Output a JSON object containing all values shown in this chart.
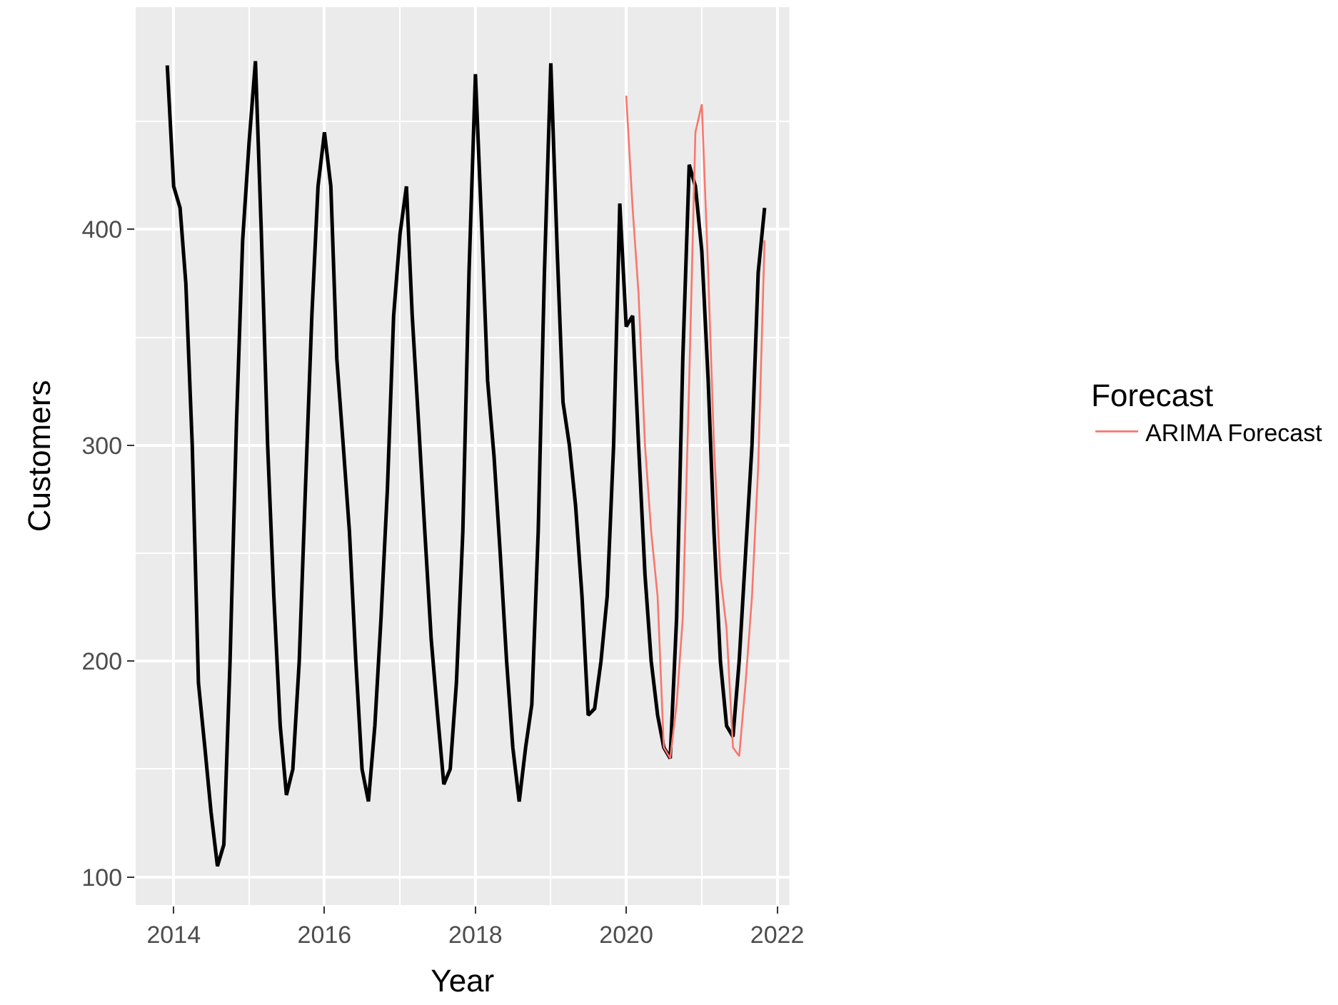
{
  "chart_data": {
    "type": "line",
    "xlabel": "Year",
    "ylabel": "Customers",
    "legend_title": "Forecast",
    "x": [
      "2013-12",
      "2014-01",
      "2014-02",
      "2014-03",
      "2014-04",
      "2014-05",
      "2014-06",
      "2014-07",
      "2014-08",
      "2014-09",
      "2014-10",
      "2014-11",
      "2014-12",
      "2015-01",
      "2015-02",
      "2015-03",
      "2015-04",
      "2015-05",
      "2015-06",
      "2015-07",
      "2015-08",
      "2015-09",
      "2015-10",
      "2015-11",
      "2015-12",
      "2016-01",
      "2016-02",
      "2016-03",
      "2016-04",
      "2016-05",
      "2016-06",
      "2016-07",
      "2016-08",
      "2016-09",
      "2016-10",
      "2016-11",
      "2016-12",
      "2017-01",
      "2017-02",
      "2017-03",
      "2017-04",
      "2017-05",
      "2017-06",
      "2017-07",
      "2017-08",
      "2017-09",
      "2017-10",
      "2017-11",
      "2017-12",
      "2018-01",
      "2018-02",
      "2018-03",
      "2018-04",
      "2018-05",
      "2018-06",
      "2018-07",
      "2018-08",
      "2018-09",
      "2018-10",
      "2018-11",
      "2018-12",
      "2019-01",
      "2019-02",
      "2019-03",
      "2019-04",
      "2019-05",
      "2019-06",
      "2019-07",
      "2019-08",
      "2019-09",
      "2019-10",
      "2019-11",
      "2019-12",
      "2020-01",
      "2020-02",
      "2020-03",
      "2020-04",
      "2020-05",
      "2020-06",
      "2020-07",
      "2020-08",
      "2020-09",
      "2020-10",
      "2020-11",
      "2020-12",
      "2021-01",
      "2021-02",
      "2021-03",
      "2021-04",
      "2021-05",
      "2021-06",
      "2021-07",
      "2021-08",
      "2021-09",
      "2021-10",
      "2021-11"
    ],
    "series": [
      {
        "color": "#000000",
        "values": [
          476,
          420,
          410,
          375,
          300,
          190,
          160,
          130,
          105,
          115,
          200,
          310,
          395,
          440,
          478,
          400,
          300,
          230,
          170,
          138,
          150,
          200,
          280,
          360,
          420,
          445,
          420,
          340,
          300,
          260,
          200,
          150,
          135,
          170,
          220,
          280,
          360,
          398,
          420,
          360,
          310,
          260,
          210,
          176,
          143,
          150,
          190,
          260,
          380,
          472,
          400,
          330,
          295,
          250,
          200,
          160,
          135,
          160,
          180,
          260,
          380,
          477,
          390,
          320,
          300,
          272,
          230,
          175,
          178,
          200,
          230,
          300,
          412,
          355,
          360,
          300,
          240,
          200,
          175,
          160,
          155,
          220,
          340,
          430,
          420,
          390,
          330,
          260,
          200,
          170,
          165,
          200,
          250,
          300,
          380,
          410
        ]
      },
      {
        "name": "ARIMA Forecast",
        "color": "#f8766d",
        "x": [
          "2020-01",
          "2020-02",
          "2020-03",
          "2020-04",
          "2020-05",
          "2020-06",
          "2020-07",
          "2020-08",
          "2020-09",
          "2020-10",
          "2020-11",
          "2020-12",
          "2021-01",
          "2021-02",
          "2021-03",
          "2021-04",
          "2021-05",
          "2021-06",
          "2021-07",
          "2021-08",
          "2021-09",
          "2021-10",
          "2021-11"
        ],
        "values": [
          462,
          410,
          370,
          300,
          260,
          230,
          160,
          155,
          180,
          220,
          330,
          445,
          458,
          380,
          300,
          240,
          215,
          160,
          156,
          190,
          230,
          290,
          395
        ]
      }
    ],
    "xlim": [
      "2013-07",
      "2022-03"
    ],
    "xticks": [
      {
        "value": "2014-01",
        "label": "2014"
      },
      {
        "value": "2016-01",
        "label": "2016"
      },
      {
        "value": "2018-01",
        "label": "2018"
      },
      {
        "value": "2020-01",
        "label": "2020"
      },
      {
        "value": "2022-01",
        "label": "2022"
      }
    ],
    "ylim": [
      87,
      503
    ],
    "yticks": [
      100,
      200,
      300,
      400
    ],
    "grid": true,
    "legend": "right",
    "line_style": "solid",
    "marker": "none"
  }
}
